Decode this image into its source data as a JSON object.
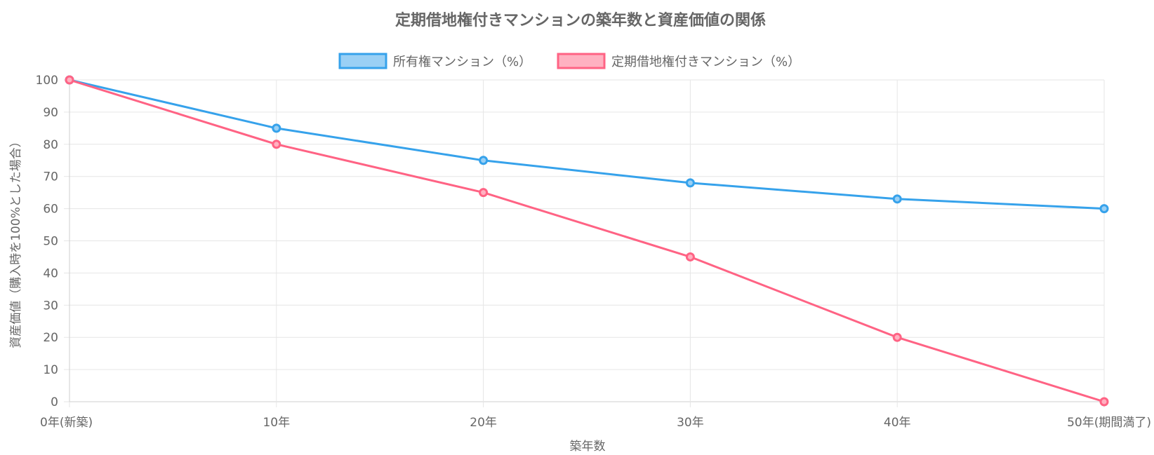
{
  "chart_data": {
    "type": "line",
    "title": "定期借地権付きマンションの築年数と資産価値の関係",
    "xlabel": "築年数",
    "ylabel": "資産価値（購入時を100%とした場合）",
    "categories": [
      "0年(新築)",
      "10年",
      "20年",
      "30年",
      "40年",
      "50年(期間満了)"
    ],
    "ylim": [
      0,
      100
    ],
    "yticks": [
      0,
      10,
      20,
      30,
      40,
      50,
      60,
      70,
      80,
      90,
      100
    ],
    "grid": true,
    "legend_position": "top",
    "series": [
      {
        "name": "所有権マンション（%）",
        "values": [
          100,
          85,
          75,
          68,
          63,
          60
        ],
        "color": "#36A2EB",
        "fill": "#9AD0F5"
      },
      {
        "name": "定期借地権付きマンション（%）",
        "values": [
          100,
          80,
          65,
          45,
          20,
          0
        ],
        "color": "#FF6384",
        "fill": "#FFB1C1"
      }
    ]
  }
}
